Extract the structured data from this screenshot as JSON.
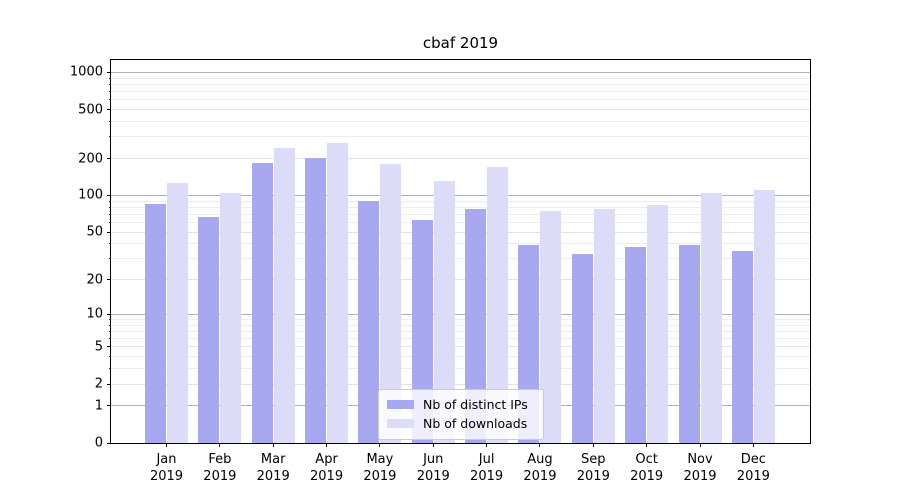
{
  "figure": {
    "background": "#ffffff"
  },
  "chart_data": {
    "type": "bar",
    "title": "cbaf 2019",
    "scale": "log1p",
    "grid": true,
    "legend_position": "lower center",
    "categories": [
      "Jan 2019",
      "Feb 2019",
      "Mar 2019",
      "Apr 2019",
      "May 2019",
      "Jun 2019",
      "Jul 2019",
      "Aug 2019",
      "Sep 2019",
      "Oct 2019",
      "Nov 2019",
      "Dec 2019"
    ],
    "series": [
      {
        "name": "Nb of distinct IPs",
        "color": "#a8a8f0",
        "values": [
          85,
          66,
          184,
          203,
          90,
          63,
          77,
          39,
          33,
          38,
          39,
          35
        ]
      },
      {
        "name": "Nb of downloads",
        "color": "#dcdcf8",
        "values": [
          127,
          105,
          242,
          266,
          180,
          132,
          170,
          75,
          78,
          84,
          104,
          110
        ]
      }
    ],
    "yticks": [
      0,
      1,
      2,
      5,
      10,
      20,
      50,
      100,
      200,
      500,
      1000
    ],
    "ylim": [
      0,
      1260
    ],
    "xlabel": "",
    "ylabel": "",
    "colors": {
      "major_grid": "#b0b0b0",
      "labeled_grid": "#e2e2e2",
      "minor_grid": "#ededed",
      "spine": "#000000"
    }
  }
}
